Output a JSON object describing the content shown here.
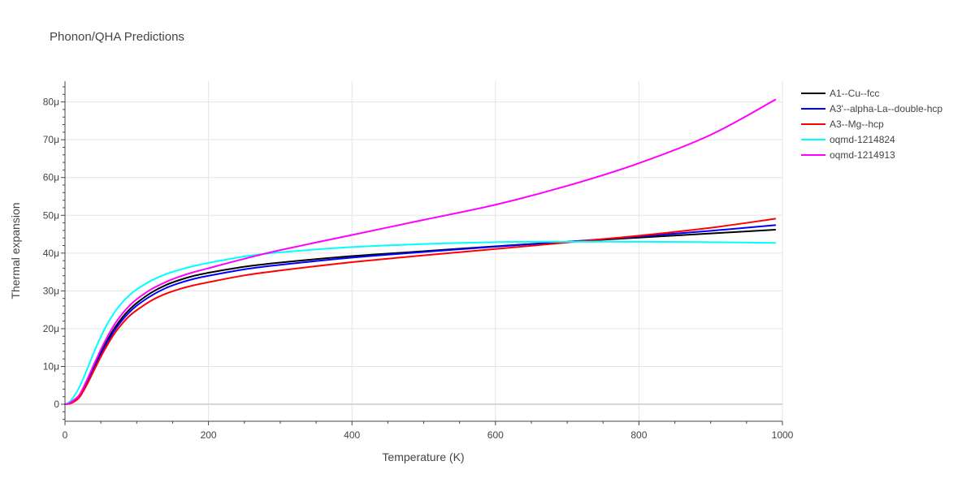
{
  "chart_data": {
    "type": "line",
    "title": "Phonon/QHA Predictions",
    "xlabel": "Temperature (K)",
    "ylabel": "Thermal expansion",
    "xlim": [
      0,
      1000
    ],
    "ylim": [
      -4.5e-06,
      8.55e-05
    ],
    "x_ticks": [
      {
        "value": 0,
        "label": "0"
      },
      {
        "value": 200,
        "label": "200"
      },
      {
        "value": 400,
        "label": "400"
      },
      {
        "value": 600,
        "label": "600"
      },
      {
        "value": 800,
        "label": "800"
      },
      {
        "value": 1000,
        "label": "1000"
      }
    ],
    "y_ticks": [
      {
        "value": 0,
        "label": "0"
      },
      {
        "value": 1e-05,
        "label": "10μ"
      },
      {
        "value": 2e-05,
        "label": "20μ"
      },
      {
        "value": 3e-05,
        "label": "30μ"
      },
      {
        "value": 4e-05,
        "label": "40μ"
      },
      {
        "value": 5e-05,
        "label": "50μ"
      },
      {
        "value": 6e-05,
        "label": "60μ"
      },
      {
        "value": 7e-05,
        "label": "70μ"
      },
      {
        "value": 8e-05,
        "label": "80μ"
      }
    ],
    "grid": true,
    "legend_position": "top-right",
    "series": [
      {
        "name": "A1--Cu--fcc",
        "color": "#000000",
        "x": [
          0,
          5,
          10,
          20,
          30,
          40,
          50,
          60,
          70,
          80,
          90,
          100,
          120,
          140,
          160,
          180,
          200,
          250,
          300,
          400,
          500,
          600,
          700,
          800,
          900,
          990
        ],
        "y": [
          0,
          2e-07,
          6e-07,
          2.2e-06,
          5.7e-06,
          9.7e-06,
          1.37e-05,
          1.73e-05,
          2.04e-05,
          2.3e-05,
          2.51e-05,
          2.68e-05,
          2.95e-05,
          3.15e-05,
          3.29e-05,
          3.4e-05,
          3.48e-05,
          3.64e-05,
          3.75e-05,
          3.92e-05,
          4.05e-05,
          4.18e-05,
          4.3e-05,
          4.41e-05,
          4.52e-05,
          4.62e-05
        ]
      },
      {
        "name": "A3'--alpha-La--double-hcp",
        "color": "#0000ff",
        "x": [
          0,
          5,
          10,
          20,
          30,
          40,
          50,
          60,
          70,
          80,
          90,
          100,
          120,
          140,
          160,
          180,
          200,
          250,
          300,
          400,
          500,
          600,
          700,
          800,
          900,
          990
        ],
        "y": [
          0,
          2e-07,
          6e-07,
          2.1e-06,
          5.4e-06,
          9.3e-06,
          1.32e-05,
          1.67e-05,
          1.98e-05,
          2.23e-05,
          2.44e-05,
          2.61e-05,
          2.87e-05,
          3.07e-05,
          3.21e-05,
          3.32e-05,
          3.4e-05,
          3.57e-05,
          3.69e-05,
          3.88e-05,
          4.03e-05,
          4.17e-05,
          4.3e-05,
          4.44e-05,
          4.59e-05,
          4.74e-05
        ]
      },
      {
        "name": "A3--Mg--hcp",
        "color": "#ff0000",
        "x": [
          0,
          5,
          10,
          20,
          30,
          40,
          50,
          60,
          70,
          80,
          90,
          100,
          120,
          140,
          160,
          180,
          200,
          250,
          300,
          400,
          500,
          600,
          700,
          800,
          900,
          990
        ],
        "y": [
          0,
          1e-07,
          4e-07,
          1.8e-06,
          5e-06,
          8.8e-06,
          1.26e-05,
          1.6e-05,
          1.9e-05,
          2.14e-05,
          2.34e-05,
          2.49e-05,
          2.74e-05,
          2.92e-05,
          3.05e-05,
          3.15e-05,
          3.23e-05,
          3.41e-05,
          3.54e-05,
          3.76e-05,
          3.94e-05,
          4.11e-05,
          4.28e-05,
          4.46e-05,
          4.67e-05,
          4.91e-05
        ]
      },
      {
        "name": "oqmd-1214824",
        "color": "#00ffff",
        "x": [
          0,
          5,
          10,
          20,
          30,
          40,
          50,
          60,
          70,
          80,
          90,
          100,
          120,
          140,
          160,
          180,
          200,
          250,
          300,
          400,
          500,
          600,
          700,
          800,
          900,
          990
        ],
        "y": [
          0,
          4e-07,
          1.4e-06,
          4.5e-06,
          8.9e-06,
          1.36e-05,
          1.79e-05,
          2.16e-05,
          2.46e-05,
          2.7e-05,
          2.89e-05,
          3.04e-05,
          3.27e-05,
          3.44e-05,
          3.56e-05,
          3.66e-05,
          3.74e-05,
          3.91e-05,
          4.02e-05,
          4.16e-05,
          4.24e-05,
          4.29e-05,
          4.3e-05,
          4.3e-05,
          4.29e-05,
          4.27e-05
        ]
      },
      {
        "name": "oqmd-1214913",
        "color": "#ff00ff",
        "x": [
          0,
          5,
          10,
          20,
          30,
          40,
          50,
          60,
          70,
          80,
          90,
          100,
          120,
          140,
          160,
          180,
          200,
          250,
          300,
          400,
          500,
          600,
          700,
          800,
          900,
          990
        ],
        "y": [
          0,
          2e-07,
          8e-07,
          2.5e-06,
          6.2e-06,
          1.04e-05,
          1.45e-05,
          1.82e-05,
          2.14e-05,
          2.4e-05,
          2.61e-05,
          2.78e-05,
          3.04e-05,
          3.23e-05,
          3.38e-05,
          3.5e-05,
          3.6e-05,
          3.85e-05,
          4.08e-05,
          4.48e-05,
          4.88e-05,
          5.28e-05,
          5.78e-05,
          6.38e-05,
          7.13e-05,
          8.06e-05
        ]
      }
    ]
  }
}
